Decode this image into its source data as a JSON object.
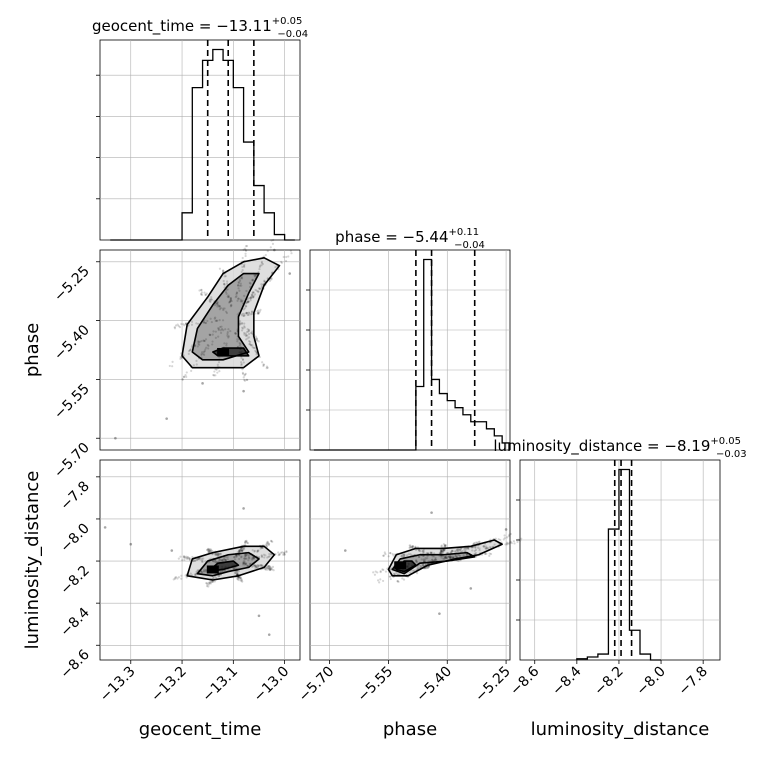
{
  "chart_data": [
    {
      "type": "histogram",
      "panel": "geocent_time",
      "title": {
        "name": "geocent_time",
        "median": "−13.11",
        "plus": "+0.05",
        "minus": "−0.04"
      },
      "quantiles": [
        -13.15,
        -13.11,
        -13.06
      ],
      "xlim": [
        -13.36,
        -12.97
      ],
      "bin_edges": [
        -13.34,
        -13.32,
        -13.3,
        -13.28,
        -13.26,
        -13.24,
        -13.22,
        -13.2,
        -13.18,
        -13.16,
        -13.14,
        -13.12,
        -13.1,
        -13.08,
        -13.06,
        -13.04,
        -13.02,
        -13.0,
        -12.98
      ],
      "counts": [
        0,
        0,
        0,
        0,
        0,
        0,
        0,
        5,
        28,
        33,
        35,
        33,
        28,
        18,
        10,
        5,
        1,
        0
      ]
    },
    {
      "type": "histogram",
      "panel": "phase",
      "title": {
        "name": "phase",
        "median": "−5.44",
        "plus": "+0.11",
        "minus": "−0.04"
      },
      "quantiles": [
        -5.48,
        -5.44,
        -5.33
      ],
      "xlim": [
        -5.75,
        -5.24
      ],
      "bin_edges": [
        -5.74,
        -5.72,
        -5.7,
        -5.68,
        -5.66,
        -5.64,
        -5.62,
        -5.6,
        -5.58,
        -5.56,
        -5.54,
        -5.52,
        -5.5,
        -5.48,
        -5.46,
        -5.44,
        -5.42,
        -5.4,
        -5.38,
        -5.36,
        -5.34,
        -5.32,
        -5.3,
        -5.28,
        -5.26,
        -5.24
      ],
      "counts": [
        0,
        0,
        0,
        0,
        0,
        0,
        0,
        0,
        0,
        0,
        0,
        0,
        0,
        9,
        27,
        10,
        8,
        7,
        6,
        5,
        4,
        4,
        3,
        2,
        1
      ]
    },
    {
      "type": "histogram",
      "panel": "luminosity_distance",
      "title": {
        "name": "luminosity_distance",
        "median": "−8.19",
        "plus": "+0.05",
        "minus": "−0.03"
      },
      "quantiles": [
        -8.22,
        -8.19,
        -8.14
      ],
      "xlim": [
        -8.67,
        -7.72
      ],
      "bin_edges": [
        -8.4,
        -8.35,
        -8.3,
        -8.25,
        -8.2,
        -8.15,
        -8.1,
        -8.05,
        -8.0
      ],
      "counts": [
        0.2,
        0.5,
        1,
        22,
        32,
        5,
        1,
        0
      ]
    },
    {
      "type": "scatter",
      "panel": "phase_vs_geocent_time",
      "xlabel": "",
      "ylabel": "phase",
      "xlim": [
        -13.36,
        -12.97
      ],
      "ylim": [
        -5.73,
        -5.22
      ],
      "points": [
        [
          -13.33,
          -5.7
        ],
        [
          -13.23,
          -5.65
        ],
        [
          -13.16,
          -5.56
        ],
        [
          -13.08,
          -5.58
        ],
        [
          -13.02,
          -5.22
        ],
        [
          -12.99,
          -5.28
        ]
      ],
      "density_peak": [
        -13.12,
        -5.48
      ],
      "contours": [
        [
          [
            -13.2,
            -5.49
          ],
          [
            -13.19,
            -5.41
          ],
          [
            -13.15,
            -5.34
          ],
          [
            -13.12,
            -5.28
          ],
          [
            -13.08,
            -5.25
          ],
          [
            -13.04,
            -5.24
          ],
          [
            -13.01,
            -5.26
          ],
          [
            -13.04,
            -5.31
          ],
          [
            -13.06,
            -5.38
          ],
          [
            -13.06,
            -5.44
          ],
          [
            -13.05,
            -5.49
          ],
          [
            -13.08,
            -5.52
          ],
          [
            -13.13,
            -5.52
          ],
          [
            -13.18,
            -5.52
          ]
        ],
        [
          [
            -13.18,
            -5.48
          ],
          [
            -13.17,
            -5.42
          ],
          [
            -13.14,
            -5.36
          ],
          [
            -13.11,
            -5.31
          ],
          [
            -13.08,
            -5.28
          ],
          [
            -13.05,
            -5.28
          ],
          [
            -13.07,
            -5.33
          ],
          [
            -13.09,
            -5.39
          ],
          [
            -13.09,
            -5.44
          ],
          [
            -13.07,
            -5.48
          ],
          [
            -13.12,
            -5.5
          ],
          [
            -13.16,
            -5.5
          ]
        ],
        [
          [
            -13.14,
            -5.48
          ],
          [
            -13.12,
            -5.47
          ],
          [
            -13.08,
            -5.47
          ],
          [
            -13.07,
            -5.49
          ],
          [
            -13.11,
            -5.49
          ],
          [
            -13.13,
            -5.49
          ]
        ]
      ]
    },
    {
      "type": "scatter",
      "panel": "luminosity_distance_vs_geocent_time",
      "xlabel": "geocent_time",
      "ylabel": "luminosity_distance",
      "xlim": [
        -13.36,
        -12.97
      ],
      "ylim": [
        -8.67,
        -7.72
      ],
      "points": [
        [
          -13.35,
          -8.04
        ],
        [
          -13.3,
          -8.12
        ],
        [
          -13.22,
          -8.15
        ],
        [
          -13.08,
          -7.95
        ],
        [
          -13.03,
          -8.55
        ],
        [
          -13.05,
          -8.46
        ]
      ],
      "density_peak": [
        -13.14,
        -8.24
      ],
      "contours": [
        [
          [
            -13.19,
            -8.27
          ],
          [
            -13.18,
            -8.19
          ],
          [
            -13.14,
            -8.16
          ],
          [
            -13.08,
            -8.13
          ],
          [
            -13.04,
            -8.13
          ],
          [
            -13.02,
            -8.17
          ],
          [
            -13.04,
            -8.23
          ],
          [
            -13.09,
            -8.27
          ],
          [
            -13.14,
            -8.29
          ]
        ],
        [
          [
            -13.17,
            -8.26
          ],
          [
            -13.15,
            -8.2
          ],
          [
            -13.11,
            -8.17
          ],
          [
            -13.07,
            -8.16
          ],
          [
            -13.05,
            -8.19
          ],
          [
            -13.07,
            -8.23
          ],
          [
            -13.11,
            -8.25
          ],
          [
            -13.14,
            -8.27
          ]
        ],
        [
          [
            -13.15,
            -8.25
          ],
          [
            -13.13,
            -8.21
          ],
          [
            -13.1,
            -8.2
          ],
          [
            -13.09,
            -8.22
          ],
          [
            -13.12,
            -8.24
          ]
        ]
      ]
    },
    {
      "type": "scatter",
      "panel": "luminosity_distance_vs_phase",
      "xlabel": "phase",
      "ylabel": "",
      "xlim": [
        -5.75,
        -5.24
      ],
      "ylim": [
        -8.67,
        -7.72
      ],
      "points": [
        [
          -5.66,
          -8.15
        ],
        [
          -5.44,
          -7.97
        ],
        [
          -5.42,
          -8.45
        ],
        [
          -5.25,
          -8.05
        ],
        [
          -5.34,
          -8.33
        ]
      ],
      "density_peak": [
        -5.52,
        -8.22
      ],
      "contours": [
        [
          [
            -5.55,
            -8.24
          ],
          [
            -5.53,
            -8.17
          ],
          [
            -5.48,
            -8.14
          ],
          [
            -5.41,
            -8.14
          ],
          [
            -5.34,
            -8.13
          ],
          [
            -5.28,
            -8.1
          ],
          [
            -5.26,
            -8.12
          ],
          [
            -5.32,
            -8.17
          ],
          [
            -5.38,
            -8.19
          ],
          [
            -5.45,
            -8.22
          ],
          [
            -5.5,
            -8.27
          ],
          [
            -5.54,
            -8.27
          ]
        ],
        [
          [
            -5.54,
            -8.24
          ],
          [
            -5.52,
            -8.19
          ],
          [
            -5.47,
            -8.17
          ],
          [
            -5.41,
            -8.17
          ],
          [
            -5.35,
            -8.16
          ],
          [
            -5.33,
            -8.18
          ],
          [
            -5.4,
            -8.2
          ],
          [
            -5.47,
            -8.21
          ],
          [
            -5.51,
            -8.26
          ]
        ],
        [
          [
            -5.53,
            -8.24
          ],
          [
            -5.51,
            -8.2
          ],
          [
            -5.49,
            -8.2
          ],
          [
            -5.48,
            -8.22
          ],
          [
            -5.51,
            -8.25
          ]
        ]
      ]
    }
  ],
  "axes": {
    "geocent_time": {
      "ticks": [
        -13.3,
        -13.2,
        -13.1,
        -13.0
      ],
      "labels": [
        "−13.3",
        "−13.2",
        "−13.1",
        "−13.0"
      ],
      "axis_label": "geocent_time"
    },
    "phase": {
      "ticks": [
        -5.7,
        -5.55,
        -5.4,
        -5.25
      ],
      "labels": [
        "−5.70",
        "−5.55",
        "−5.40",
        "−5.25"
      ],
      "axis_label": "phase"
    },
    "luminosity_distance": {
      "ticks": [
        -8.6,
        -8.4,
        -8.2,
        -8.0,
        -7.8
      ],
      "labels": [
        "−8.6",
        "−8.4",
        "−8.2",
        "−8.0",
        "−7.8"
      ],
      "axis_label": "luminosity_distance"
    }
  },
  "style": {
    "line_color": "#000000",
    "grid_color": "#b0b0b0",
    "scatter_color": "#000000",
    "background": "#ffffff"
  }
}
